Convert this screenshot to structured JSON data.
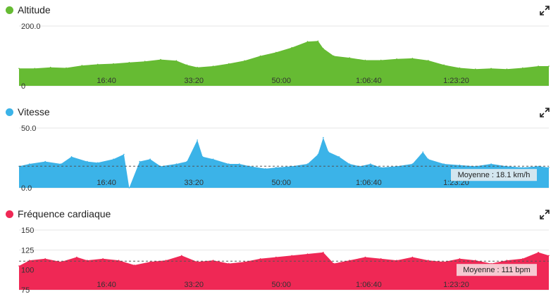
{
  "chart_data": [
    {
      "type": "area",
      "title": "Altitude",
      "color": "#66bb33",
      "ylim": [
        0,
        200
      ],
      "y_tick_labels": [
        "200.0",
        "0"
      ],
      "x_tick_labels": [
        "16:40",
        "33:20",
        "50:00",
        "1:06:40",
        "1:23:20"
      ],
      "x_range_seconds": [
        0,
        6060
      ],
      "x": [
        0,
        180,
        360,
        540,
        720,
        900,
        1080,
        1260,
        1440,
        1620,
        1800,
        1920,
        2040,
        2220,
        2400,
        2580,
        2760,
        2940,
        3120,
        3300,
        3420,
        3480,
        3600,
        3780,
        3960,
        4140,
        4320,
        4500,
        4680,
        4860,
        5040,
        5220,
        5400,
        5580,
        5760,
        5940,
        6060
      ],
      "values": [
        58,
        58,
        62,
        60,
        68,
        72,
        74,
        78,
        82,
        88,
        84,
        70,
        62,
        66,
        74,
        84,
        100,
        112,
        128,
        148,
        150,
        125,
        100,
        94,
        86,
        86,
        90,
        92,
        85,
        70,
        60,
        56,
        58,
        56,
        60,
        66,
        66
      ]
    },
    {
      "type": "area",
      "title": "Vitesse",
      "color": "#3bb3e8",
      "ylim": [
        0,
        50
      ],
      "y_tick_labels": [
        "50.0",
        "0.0"
      ],
      "x_tick_labels": [
        "16:40",
        "33:20",
        "50:00",
        "1:06:40",
        "1:23:20"
      ],
      "x_range_seconds": [
        0,
        6060
      ],
      "x": [
        0,
        120,
        300,
        480,
        600,
        780,
        900,
        1080,
        1200,
        1260,
        1380,
        1500,
        1620,
        1800,
        1920,
        2040,
        2100,
        2220,
        2400,
        2520,
        2640,
        2820,
        2940,
        3120,
        3300,
        3420,
        3480,
        3540,
        3660,
        3780,
        3900,
        4020,
        4140,
        4320,
        4500,
        4620,
        4680,
        4860,
        5040,
        5220,
        5400,
        5580,
        5760,
        5940,
        6060
      ],
      "values": [
        18,
        20,
        22,
        20,
        26,
        22,
        21,
        24,
        28,
        0,
        22,
        24,
        18,
        20,
        22,
        40,
        26,
        24,
        20,
        20,
        18,
        16,
        17,
        18,
        20,
        28,
        42,
        30,
        26,
        20,
        18,
        20,
        17,
        18,
        20,
        30,
        24,
        20,
        19,
        18,
        20,
        18,
        17,
        18,
        17
      ],
      "average": {
        "value": 18.1,
        "label": "Moyenne : 18.1 km/h"
      }
    },
    {
      "type": "area",
      "title": "Fréquence cardiaque",
      "color": "#ef2855",
      "ylim": [
        75,
        150
      ],
      "y_tick_labels": [
        "150",
        "125",
        "100",
        "75"
      ],
      "x_tick_labels": [
        "16:40",
        "33:20",
        "50:00",
        "1:06:40",
        "1:23:20"
      ],
      "x_range_seconds": [
        0,
        6060
      ],
      "x": [
        0,
        120,
        300,
        480,
        660,
        780,
        960,
        1140,
        1320,
        1500,
        1680,
        1860,
        2040,
        2220,
        2400,
        2580,
        2760,
        2940,
        3120,
        3300,
        3480,
        3600,
        3780,
        3960,
        4140,
        4320,
        4500,
        4680,
        4860,
        5040,
        5220,
        5400,
        5580,
        5760,
        5940,
        6060
      ],
      "values": [
        105,
        112,
        114,
        110,
        116,
        112,
        114,
        112,
        106,
        110,
        112,
        118,
        110,
        112,
        108,
        110,
        114,
        116,
        118,
        120,
        122,
        108,
        112,
        116,
        114,
        112,
        116,
        112,
        110,
        114,
        112,
        108,
        112,
        114,
        122,
        118
      ],
      "average": {
        "value": 111,
        "label": "Moyenne : 111 bpm"
      }
    }
  ]
}
